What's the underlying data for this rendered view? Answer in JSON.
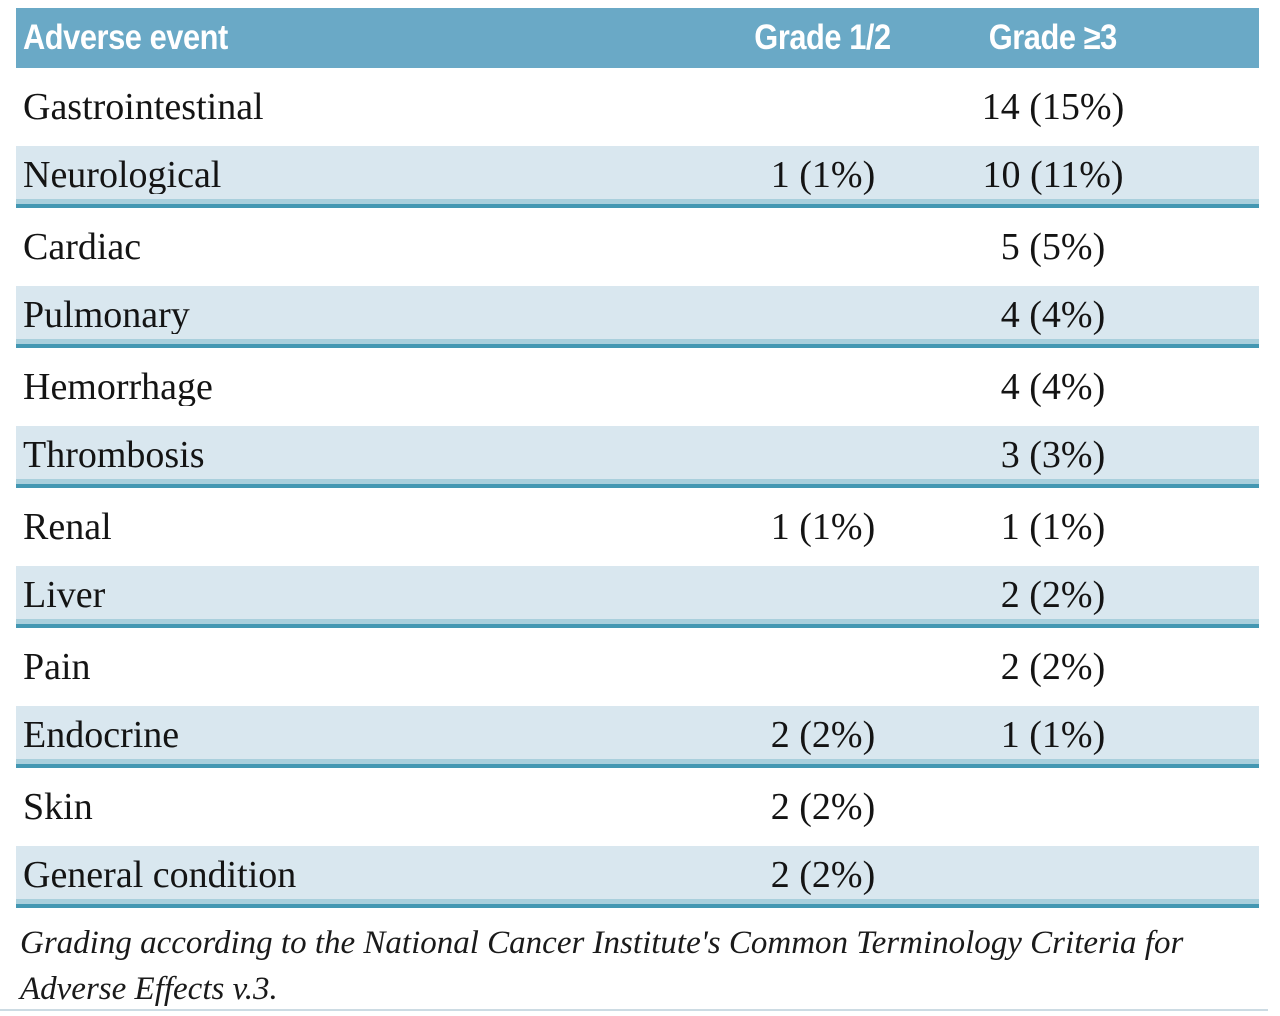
{
  "table": {
    "columns": [
      "Adverse event",
      "Grade 1/2",
      "Grade ≥3"
    ],
    "rows": [
      {
        "event": "Gastrointestinal",
        "grade12": "",
        "grade3plus": "14 (15%)"
      },
      {
        "event": "Neurological",
        "grade12": "1 (1%)",
        "grade3plus": "10 (11%)"
      },
      {
        "event": "Cardiac",
        "grade12": "",
        "grade3plus": "5 (5%)"
      },
      {
        "event": "Pulmonary",
        "grade12": "",
        "grade3plus": "4 (4%)"
      },
      {
        "event": "Hemorrhage",
        "grade12": "",
        "grade3plus": "4 (4%)"
      },
      {
        "event": "Thrombosis",
        "grade12": "",
        "grade3plus": "3 (3%)"
      },
      {
        "event": "Renal",
        "grade12": "1 (1%)",
        "grade3plus": "1 (1%)"
      },
      {
        "event": "Liver",
        "grade12": "",
        "grade3plus": "2 (2%)"
      },
      {
        "event": "Pain",
        "grade12": "",
        "grade3plus": "2 (2%)"
      },
      {
        "event": "Endocrine",
        "grade12": "2 (2%)",
        "grade3plus": "1 (1%)"
      },
      {
        "event": "Skin",
        "grade12": "2 (2%)",
        "grade3plus": ""
      },
      {
        "event": "General condition",
        "grade12": "2 (2%)",
        "grade3plus": ""
      }
    ],
    "footnote": "Grading according to the National Cancer Institute's Common Terminology Criteria for Adverse Effects v.3."
  },
  "colors": {
    "header_bg": "#6aa9c6",
    "header_text": "#ffffff",
    "row_bg": "#d9e7ef",
    "rule": "#4397b2",
    "body_text": "#141414",
    "faint_line": "#ccdbe3"
  }
}
